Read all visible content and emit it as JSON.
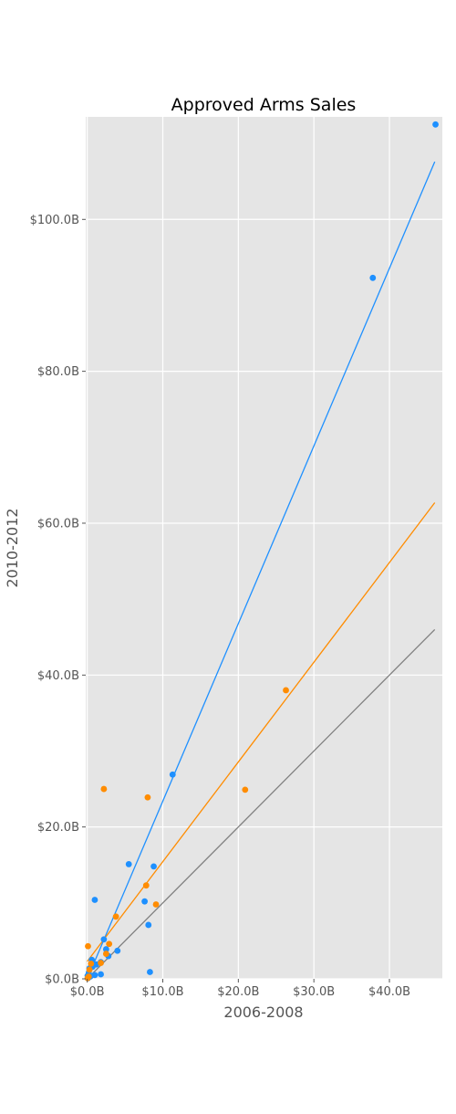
{
  "chart_data": {
    "type": "scatter",
    "title": "Approved Arms Sales",
    "xlabel": "2006-2008",
    "ylabel": "2010-2012",
    "xlim": [
      -0.2,
      47
    ],
    "ylim": [
      0,
      113.5
    ],
    "x_ticks": [
      {
        "value": 0,
        "label": "$0.0B"
      },
      {
        "value": 10,
        "label": "$10.0B"
      },
      {
        "value": 20,
        "label": "$20.0B"
      },
      {
        "value": 30,
        "label": "$30.0B"
      },
      {
        "value": 40,
        "label": "$40.0B"
      }
    ],
    "y_ticks": [
      {
        "value": 0,
        "label": "$0.0B"
      },
      {
        "value": 20,
        "label": "$20.0B"
      },
      {
        "value": 40,
        "label": "$40.0B"
      },
      {
        "value": 60,
        "label": "$60.0B"
      },
      {
        "value": 80,
        "label": "$80.0B"
      },
      {
        "value": 100,
        "label": "$100.0B"
      }
    ],
    "grid": true,
    "legend": "none",
    "background_color": "#e5e5e5",
    "grid_color": "#ffffff",
    "series": [
      {
        "color": "#1e90ff",
        "points": [
          [
            46.1,
            112.5
          ],
          [
            37.8,
            92.3
          ],
          [
            11.3,
            26.9
          ],
          [
            5.5,
            15.1
          ],
          [
            8.8,
            14.8
          ],
          [
            1.0,
            10.4
          ],
          [
            7.6,
            10.2
          ],
          [
            8.1,
            7.1
          ],
          [
            2.2,
            5.2
          ],
          [
            4.0,
            3.7
          ],
          [
            2.8,
            3.0
          ],
          [
            1.8,
            2.2
          ],
          [
            1.2,
            1.9
          ],
          [
            0.7,
            1.6
          ],
          [
            0.3,
            1.4
          ],
          [
            1.8,
            0.6
          ],
          [
            1.0,
            0.5
          ],
          [
            8.3,
            0.9
          ],
          [
            0.4,
            0.3
          ],
          [
            0.1,
            0.1
          ],
          [
            0.2,
            0.8
          ],
          [
            0.6,
            2.5
          ],
          [
            2.5,
            3.9
          ],
          [
            0.05,
            0.4
          ]
        ],
        "fit_line": [
          [
            0,
            0
          ],
          [
            46,
            107.6
          ]
        ]
      },
      {
        "color": "#ff8c00",
        "points": [
          [
            26.3,
            38.0
          ],
          [
            20.9,
            24.9
          ],
          [
            2.2,
            25.0
          ],
          [
            8.0,
            23.9
          ],
          [
            7.8,
            12.3
          ],
          [
            9.1,
            9.8
          ],
          [
            3.8,
            8.2
          ],
          [
            2.9,
            4.6
          ],
          [
            2.5,
            3.3
          ],
          [
            0.1,
            4.3
          ],
          [
            1.8,
            2.1
          ],
          [
            0.3,
            1.2
          ],
          [
            0.2,
            0.3
          ],
          [
            0.05,
            0.1
          ],
          [
            0.5,
            2.0
          ]
        ],
        "fit_line": [
          [
            0,
            2.3
          ],
          [
            46,
            62.7
          ]
        ]
      },
      {
        "color": "#808080",
        "points": [],
        "fit_line": [
          [
            0,
            0
          ],
          [
            46,
            46
          ]
        ]
      }
    ]
  }
}
